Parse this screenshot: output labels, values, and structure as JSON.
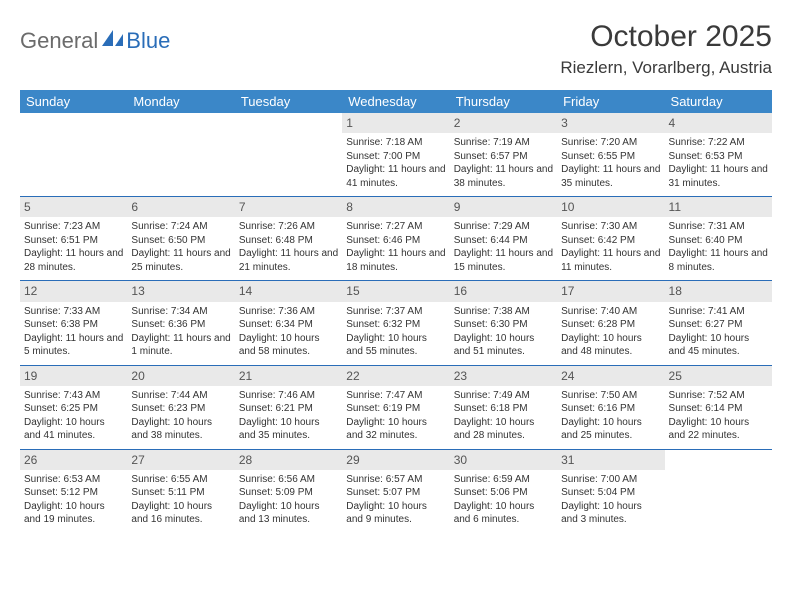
{
  "logo": {
    "text1": "General",
    "text2": "Blue"
  },
  "title": "October 2025",
  "location": "Riezlern, Vorarlberg, Austria",
  "colors": {
    "header_bg": "#3b87c8",
    "header_text": "#ffffff",
    "daynum_bg": "#e9e9e9",
    "rule": "#2a6db8",
    "logo_gray": "#6b6b6b",
    "logo_blue": "#2a6db8"
  },
  "day_headers": [
    "Sunday",
    "Monday",
    "Tuesday",
    "Wednesday",
    "Thursday",
    "Friday",
    "Saturday"
  ],
  "weeks": [
    [
      null,
      null,
      null,
      {
        "n": "1",
        "sr": "7:18 AM",
        "ss": "7:00 PM",
        "dl": "11 hours and 41 minutes."
      },
      {
        "n": "2",
        "sr": "7:19 AM",
        "ss": "6:57 PM",
        "dl": "11 hours and 38 minutes."
      },
      {
        "n": "3",
        "sr": "7:20 AM",
        "ss": "6:55 PM",
        "dl": "11 hours and 35 minutes."
      },
      {
        "n": "4",
        "sr": "7:22 AM",
        "ss": "6:53 PM",
        "dl": "11 hours and 31 minutes."
      }
    ],
    [
      {
        "n": "5",
        "sr": "7:23 AM",
        "ss": "6:51 PM",
        "dl": "11 hours and 28 minutes."
      },
      {
        "n": "6",
        "sr": "7:24 AM",
        "ss": "6:50 PM",
        "dl": "11 hours and 25 minutes."
      },
      {
        "n": "7",
        "sr": "7:26 AM",
        "ss": "6:48 PM",
        "dl": "11 hours and 21 minutes."
      },
      {
        "n": "8",
        "sr": "7:27 AM",
        "ss": "6:46 PM",
        "dl": "11 hours and 18 minutes."
      },
      {
        "n": "9",
        "sr": "7:29 AM",
        "ss": "6:44 PM",
        "dl": "11 hours and 15 minutes."
      },
      {
        "n": "10",
        "sr": "7:30 AM",
        "ss": "6:42 PM",
        "dl": "11 hours and 11 minutes."
      },
      {
        "n": "11",
        "sr": "7:31 AM",
        "ss": "6:40 PM",
        "dl": "11 hours and 8 minutes."
      }
    ],
    [
      {
        "n": "12",
        "sr": "7:33 AM",
        "ss": "6:38 PM",
        "dl": "11 hours and 5 minutes."
      },
      {
        "n": "13",
        "sr": "7:34 AM",
        "ss": "6:36 PM",
        "dl": "11 hours and 1 minute."
      },
      {
        "n": "14",
        "sr": "7:36 AM",
        "ss": "6:34 PM",
        "dl": "10 hours and 58 minutes."
      },
      {
        "n": "15",
        "sr": "7:37 AM",
        "ss": "6:32 PM",
        "dl": "10 hours and 55 minutes."
      },
      {
        "n": "16",
        "sr": "7:38 AM",
        "ss": "6:30 PM",
        "dl": "10 hours and 51 minutes."
      },
      {
        "n": "17",
        "sr": "7:40 AM",
        "ss": "6:28 PM",
        "dl": "10 hours and 48 minutes."
      },
      {
        "n": "18",
        "sr": "7:41 AM",
        "ss": "6:27 PM",
        "dl": "10 hours and 45 minutes."
      }
    ],
    [
      {
        "n": "19",
        "sr": "7:43 AM",
        "ss": "6:25 PM",
        "dl": "10 hours and 41 minutes."
      },
      {
        "n": "20",
        "sr": "7:44 AM",
        "ss": "6:23 PM",
        "dl": "10 hours and 38 minutes."
      },
      {
        "n": "21",
        "sr": "7:46 AM",
        "ss": "6:21 PM",
        "dl": "10 hours and 35 minutes."
      },
      {
        "n": "22",
        "sr": "7:47 AM",
        "ss": "6:19 PM",
        "dl": "10 hours and 32 minutes."
      },
      {
        "n": "23",
        "sr": "7:49 AM",
        "ss": "6:18 PM",
        "dl": "10 hours and 28 minutes."
      },
      {
        "n": "24",
        "sr": "7:50 AM",
        "ss": "6:16 PM",
        "dl": "10 hours and 25 minutes."
      },
      {
        "n": "25",
        "sr": "7:52 AM",
        "ss": "6:14 PM",
        "dl": "10 hours and 22 minutes."
      }
    ],
    [
      {
        "n": "26",
        "sr": "6:53 AM",
        "ss": "5:12 PM",
        "dl": "10 hours and 19 minutes."
      },
      {
        "n": "27",
        "sr": "6:55 AM",
        "ss": "5:11 PM",
        "dl": "10 hours and 16 minutes."
      },
      {
        "n": "28",
        "sr": "6:56 AM",
        "ss": "5:09 PM",
        "dl": "10 hours and 13 minutes."
      },
      {
        "n": "29",
        "sr": "6:57 AM",
        "ss": "5:07 PM",
        "dl": "10 hours and 9 minutes."
      },
      {
        "n": "30",
        "sr": "6:59 AM",
        "ss": "5:06 PM",
        "dl": "10 hours and 6 minutes."
      },
      {
        "n": "31",
        "sr": "7:00 AM",
        "ss": "5:04 PM",
        "dl": "10 hours and 3 minutes."
      },
      null
    ]
  ],
  "labels": {
    "sunrise": "Sunrise: ",
    "sunset": "Sunset: ",
    "daylight": "Daylight: "
  }
}
